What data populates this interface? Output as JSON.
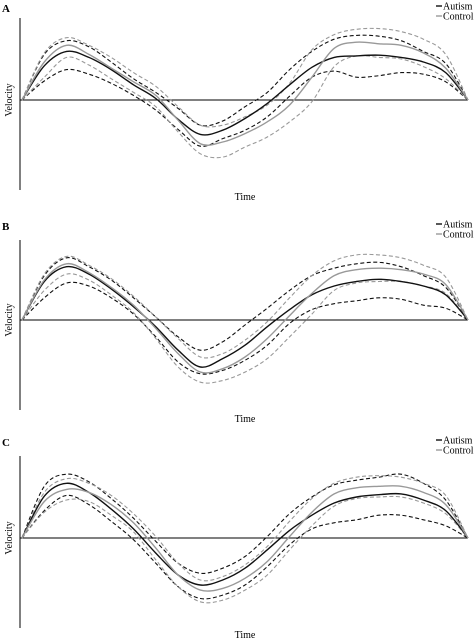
{
  "figure": {
    "legend": {
      "autism_label": "Autism",
      "control_label": "Control"
    },
    "colors": {
      "autism": "#111111",
      "control": "#999999"
    }
  },
  "chart_data": [
    {
      "type": "line",
      "panel": "A",
      "xlabel": "Time",
      "ylabel": "Velocity",
      "xlim": [
        0,
        100
      ],
      "ylim": [
        -1,
        1
      ],
      "legend_position": "top-right",
      "series": [
        {
          "name": "Autism",
          "x": [
            0,
            5,
            10,
            15,
            20,
            25,
            30,
            35,
            40,
            45,
            50,
            55,
            60,
            65,
            70,
            75,
            80,
            85,
            90,
            95,
            100
          ],
          "y": [
            0,
            0.45,
            0.64,
            0.56,
            0.4,
            0.2,
            0.02,
            -0.23,
            -0.41,
            -0.36,
            -0.22,
            -0.04,
            0.2,
            0.43,
            0.56,
            0.58,
            0.59,
            0.56,
            0.5,
            0.36,
            0
          ]
        },
        {
          "name": "Autism SD upper",
          "style": "dashed",
          "x": [
            0,
            5,
            10,
            15,
            20,
            25,
            30,
            35,
            40,
            45,
            50,
            55,
            60,
            65,
            70,
            75,
            80,
            85,
            90,
            95,
            100
          ],
          "y": [
            0,
            0.6,
            0.78,
            0.7,
            0.5,
            0.28,
            0.1,
            -0.1,
            -0.3,
            -0.25,
            -0.08,
            0.1,
            0.4,
            0.64,
            0.8,
            0.85,
            0.84,
            0.78,
            0.64,
            0.48,
            0
          ]
        },
        {
          "name": "Autism SD lower",
          "style": "dashed",
          "x": [
            0,
            5,
            10,
            15,
            20,
            25,
            30,
            35,
            40,
            45,
            50,
            55,
            60,
            65,
            70,
            75,
            80,
            85,
            90,
            95,
            100
          ],
          "y": [
            0,
            0.25,
            0.4,
            0.34,
            0.22,
            0.06,
            -0.12,
            -0.35,
            -0.55,
            -0.46,
            -0.36,
            -0.2,
            0.05,
            0.3,
            0.38,
            0.3,
            0.32,
            0.36,
            0.34,
            0.24,
            0
          ]
        },
        {
          "name": "Control",
          "x": [
            0,
            5,
            10,
            15,
            20,
            25,
            30,
            35,
            40,
            45,
            50,
            55,
            60,
            65,
            70,
            75,
            80,
            85,
            90,
            95,
            100
          ],
          "y": [
            0,
            0.5,
            0.72,
            0.6,
            0.42,
            0.24,
            0.06,
            -0.24,
            -0.52,
            -0.5,
            -0.4,
            -0.26,
            -0.06,
            0.3,
            0.68,
            0.76,
            0.74,
            0.72,
            0.62,
            0.42,
            0
          ]
        },
        {
          "name": "Control SD upper",
          "style": "dashed",
          "x": [
            0,
            5,
            10,
            15,
            20,
            25,
            30,
            35,
            40,
            45,
            50,
            55,
            60,
            65,
            70,
            75,
            80,
            85,
            90,
            95,
            100
          ],
          "y": [
            0,
            0.62,
            0.82,
            0.72,
            0.56,
            0.36,
            0.18,
            -0.08,
            -0.3,
            -0.3,
            -0.2,
            -0.06,
            0.22,
            0.66,
            0.86,
            0.93,
            0.94,
            0.9,
            0.8,
            0.6,
            0
          ]
        },
        {
          "name": "Control SD lower",
          "style": "dashed",
          "x": [
            0,
            5,
            10,
            15,
            20,
            25,
            30,
            35,
            40,
            45,
            50,
            55,
            60,
            65,
            70,
            75,
            80,
            85,
            90,
            95,
            100
          ],
          "y": [
            0,
            0.3,
            0.56,
            0.46,
            0.28,
            0.1,
            -0.08,
            -0.38,
            -0.64,
            -0.68,
            -0.56,
            -0.44,
            -0.26,
            -0.02,
            0.44,
            0.58,
            0.56,
            0.54,
            0.44,
            0.28,
            0
          ]
        }
      ]
    },
    {
      "type": "line",
      "panel": "B",
      "xlabel": "Time",
      "ylabel": "Velocity",
      "xlim": [
        0,
        100
      ],
      "ylim": [
        -1,
        1
      ],
      "legend_position": "top-right",
      "series": [
        {
          "name": "Autism",
          "x": [
            0,
            5,
            10,
            15,
            20,
            25,
            30,
            35,
            40,
            45,
            50,
            55,
            60,
            65,
            70,
            75,
            80,
            85,
            90,
            95,
            100
          ],
          "y": [
            0,
            0.52,
            0.72,
            0.62,
            0.42,
            0.18,
            -0.08,
            -0.36,
            -0.56,
            -0.46,
            -0.3,
            -0.08,
            0.14,
            0.34,
            0.46,
            0.52,
            0.55,
            0.52,
            0.46,
            0.34,
            0
          ]
        },
        {
          "name": "Autism SD upper",
          "style": "dashed",
          "x": [
            0,
            5,
            10,
            15,
            20,
            25,
            30,
            35,
            40,
            45,
            50,
            55,
            60,
            65,
            70,
            75,
            80,
            85,
            90,
            95,
            100
          ],
          "y": [
            0,
            0.6,
            0.84,
            0.72,
            0.54,
            0.3,
            0.04,
            -0.2,
            -0.36,
            -0.26,
            -0.06,
            0.16,
            0.4,
            0.6,
            0.7,
            0.76,
            0.78,
            0.72,
            0.6,
            0.44,
            0
          ]
        },
        {
          "name": "Autism SD lower",
          "style": "dashed",
          "x": [
            0,
            5,
            10,
            15,
            20,
            25,
            30,
            35,
            40,
            45,
            50,
            55,
            60,
            65,
            70,
            75,
            80,
            85,
            90,
            95,
            100
          ],
          "y": [
            0,
            0.3,
            0.5,
            0.46,
            0.3,
            0.08,
            -0.2,
            -0.5,
            -0.64,
            -0.6,
            -0.48,
            -0.3,
            -0.04,
            0.14,
            0.22,
            0.26,
            0.3,
            0.28,
            0.2,
            0.16,
            0
          ]
        },
        {
          "name": "Control",
          "x": [
            0,
            5,
            10,
            15,
            20,
            25,
            30,
            35,
            40,
            45,
            50,
            55,
            60,
            65,
            70,
            75,
            80,
            85,
            90,
            95,
            100
          ],
          "y": [
            0,
            0.54,
            0.76,
            0.64,
            0.44,
            0.2,
            -0.1,
            -0.4,
            -0.62,
            -0.58,
            -0.44,
            -0.22,
            0.06,
            0.36,
            0.6,
            0.68,
            0.7,
            0.68,
            0.62,
            0.48,
            0
          ]
        },
        {
          "name": "Control SD upper",
          "style": "dashed",
          "x": [
            0,
            5,
            10,
            15,
            20,
            25,
            30,
            35,
            40,
            45,
            50,
            55,
            60,
            65,
            70,
            75,
            80,
            85,
            90,
            95,
            100
          ],
          "y": [
            0,
            0.62,
            0.86,
            0.74,
            0.56,
            0.32,
            0.04,
            -0.22,
            -0.44,
            -0.4,
            -0.24,
            -0.02,
            0.3,
            0.6,
            0.8,
            0.88,
            0.88,
            0.84,
            0.74,
            0.58,
            0
          ]
        },
        {
          "name": "Control SD lower",
          "style": "dashed",
          "x": [
            0,
            5,
            10,
            15,
            20,
            25,
            30,
            35,
            40,
            45,
            50,
            55,
            60,
            65,
            70,
            75,
            80,
            85,
            90,
            95,
            100
          ],
          "y": [
            0,
            0.4,
            0.62,
            0.54,
            0.34,
            0.1,
            -0.22,
            -0.56,
            -0.74,
            -0.72,
            -0.62,
            -0.46,
            -0.2,
            0.08,
            0.4,
            0.5,
            0.52,
            0.52,
            0.46,
            0.36,
            0
          ]
        }
      ]
    },
    {
      "type": "line",
      "panel": "C",
      "xlabel": "Time",
      "ylabel": "Velocity",
      "xlim": [
        0,
        100
      ],
      "ylim": [
        -1,
        1
      ],
      "legend_position": "top-right",
      "series": [
        {
          "name": "Autism",
          "x": [
            0,
            5,
            10,
            15,
            20,
            25,
            30,
            35,
            40,
            45,
            50,
            55,
            60,
            65,
            70,
            75,
            80,
            85,
            90,
            95,
            100
          ],
          "y": [
            0,
            0.55,
            0.72,
            0.6,
            0.38,
            0.12,
            -0.18,
            -0.44,
            -0.56,
            -0.5,
            -0.36,
            -0.14,
            0.1,
            0.3,
            0.46,
            0.54,
            0.57,
            0.58,
            0.5,
            0.36,
            0
          ]
        },
        {
          "name": "Autism SD upper",
          "style": "dashed",
          "x": [
            0,
            5,
            10,
            15,
            20,
            25,
            30,
            35,
            40,
            45,
            50,
            55,
            60,
            65,
            70,
            75,
            80,
            85,
            90,
            95,
            100
          ],
          "y": [
            0,
            0.68,
            0.84,
            0.74,
            0.52,
            0.26,
            -0.04,
            -0.3,
            -0.42,
            -0.36,
            -0.22,
            0.02,
            0.32,
            0.54,
            0.7,
            0.76,
            0.8,
            0.84,
            0.72,
            0.5,
            0
          ]
        },
        {
          "name": "Autism SD lower",
          "style": "dashed",
          "x": [
            0,
            5,
            10,
            15,
            20,
            25,
            30,
            35,
            40,
            45,
            50,
            55,
            60,
            65,
            70,
            75,
            80,
            85,
            90,
            95,
            100
          ],
          "y": [
            0,
            0.36,
            0.56,
            0.44,
            0.22,
            -0.02,
            -0.3,
            -0.58,
            -0.72,
            -0.68,
            -0.56,
            -0.34,
            -0.08,
            0.12,
            0.2,
            0.24,
            0.3,
            0.3,
            0.24,
            0.16,
            0
          ]
        },
        {
          "name": "Control",
          "x": [
            0,
            5,
            10,
            15,
            20,
            25,
            30,
            35,
            40,
            45,
            50,
            55,
            60,
            65,
            70,
            75,
            80,
            85,
            90,
            95,
            100
          ],
          "y": [
            0,
            0.48,
            0.64,
            0.6,
            0.44,
            0.2,
            -0.12,
            -0.44,
            -0.62,
            -0.6,
            -0.48,
            -0.28,
            0.02,
            0.34,
            0.58,
            0.66,
            0.68,
            0.68,
            0.6,
            0.44,
            0
          ]
        },
        {
          "name": "Control SD upper",
          "style": "dashed",
          "x": [
            0,
            5,
            10,
            15,
            20,
            25,
            30,
            35,
            40,
            45,
            50,
            55,
            60,
            65,
            70,
            75,
            80,
            85,
            90,
            95,
            100
          ],
          "y": [
            0,
            0.6,
            0.78,
            0.72,
            0.56,
            0.32,
            0.02,
            -0.3,
            -0.5,
            -0.46,
            -0.32,
            -0.1,
            0.22,
            0.52,
            0.72,
            0.8,
            0.82,
            0.8,
            0.72,
            0.56,
            0
          ]
        },
        {
          "name": "Control SD lower",
          "style": "dashed",
          "x": [
            0,
            5,
            10,
            15,
            20,
            25,
            30,
            35,
            40,
            45,
            50,
            55,
            60,
            65,
            70,
            75,
            80,
            85,
            90,
            95,
            100
          ],
          "y": [
            0,
            0.34,
            0.5,
            0.48,
            0.3,
            0.08,
            -0.26,
            -0.58,
            -0.76,
            -0.74,
            -0.62,
            -0.44,
            -0.14,
            0.16,
            0.42,
            0.52,
            0.54,
            0.54,
            0.46,
            0.32,
            0
          ]
        }
      ]
    }
  ]
}
